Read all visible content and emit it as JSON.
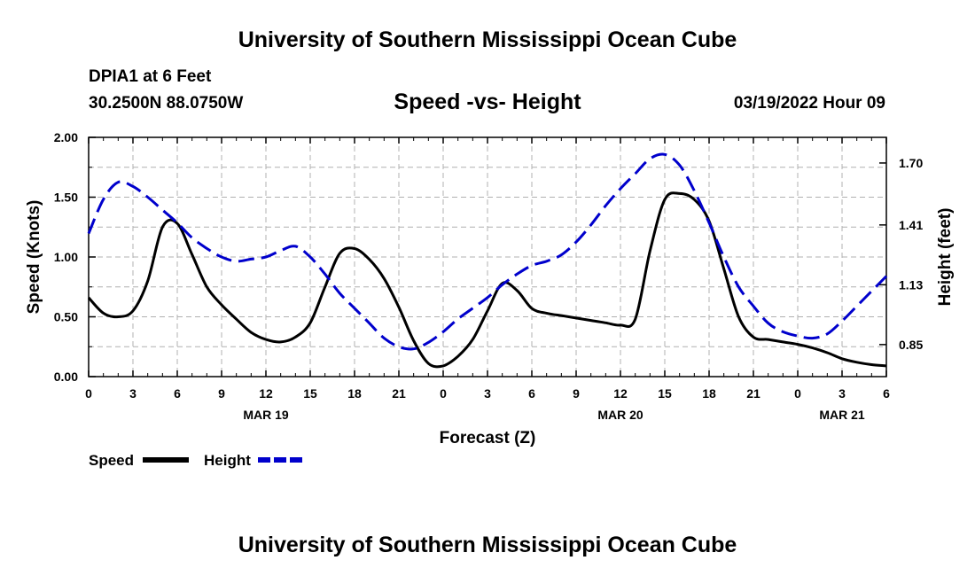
{
  "header": {
    "title_top": "University of Southern Mississippi Ocean Cube",
    "title_bottom": "University of Southern Mississippi Ocean Cube",
    "station": "DPIA1 at 6 Feet",
    "coords": "30.2500N  88.0750W",
    "datetime": "03/19/2022 Hour 09"
  },
  "colors": {
    "speed": "#000000",
    "height": "#0000cc",
    "grid": "#b0b0b0"
  },
  "chart_data": {
    "type": "line",
    "title": "Speed -vs- Height",
    "xlabel": "Forecast (Z)",
    "ylabel": "Speed (Knots)",
    "y2label": "Height (feet)",
    "ylim": [
      0,
      2
    ],
    "y2lim": [
      0.7,
      1.82
    ],
    "xlim": [
      0,
      54
    ],
    "x_ticks": [
      "0",
      "3",
      "6",
      "9",
      "12",
      "15",
      "18",
      "21",
      "0",
      "3",
      "6",
      "9",
      "12",
      "15",
      "18",
      "21",
      "0",
      "3",
      "6"
    ],
    "date_labels": [
      {
        "x": 12,
        "label": "MAR 19"
      },
      {
        "x": 36,
        "label": "MAR 20"
      },
      {
        "x": 51,
        "label": "MAR 21"
      }
    ],
    "y_ticks": [
      "0.00",
      "0.50",
      "1.00",
      "1.50",
      "2.00"
    ],
    "y2_ticks": [
      "0.85",
      "1.13",
      "1.41",
      "1.70"
    ],
    "legend": {
      "position": "bottom-left",
      "speed": "Speed",
      "height": "Height"
    },
    "series": [
      {
        "name": "Speed",
        "axis": "left",
        "x": [
          0,
          1,
          2,
          3,
          4,
          5,
          6,
          7,
          8,
          9,
          10,
          11,
          12,
          13,
          14,
          15,
          16,
          17,
          18,
          19,
          20,
          21,
          22,
          23,
          24,
          25,
          26,
          27,
          28,
          29,
          30,
          31,
          32,
          33,
          34,
          35,
          36,
          37,
          38,
          39,
          40,
          41,
          42,
          43,
          44,
          45,
          46,
          47,
          48,
          49,
          50,
          51,
          52,
          53,
          54
        ],
        "values": [
          0.66,
          0.53,
          0.5,
          0.55,
          0.8,
          1.25,
          1.28,
          1.02,
          0.75,
          0.6,
          0.48,
          0.37,
          0.31,
          0.29,
          0.33,
          0.45,
          0.75,
          1.03,
          1.07,
          0.98,
          0.82,
          0.58,
          0.3,
          0.11,
          0.09,
          0.17,
          0.31,
          0.55,
          0.78,
          0.72,
          0.57,
          0.53,
          0.51,
          0.49,
          0.47,
          0.45,
          0.43,
          0.48,
          1.05,
          1.48,
          1.53,
          1.48,
          1.3,
          0.9,
          0.5,
          0.33,
          0.31,
          0.29,
          0.27,
          0.24,
          0.2,
          0.15,
          0.12,
          0.1,
          0.09
        ]
      },
      {
        "name": "Height",
        "axis": "right",
        "x": [
          0,
          1,
          2,
          3,
          4,
          5,
          6,
          7,
          8,
          9,
          10,
          11,
          12,
          13,
          14,
          15,
          16,
          17,
          18,
          19,
          20,
          21,
          22,
          23,
          24,
          25,
          26,
          27,
          28,
          29,
          30,
          31,
          32,
          33,
          34,
          35,
          36,
          37,
          38,
          39,
          40,
          41,
          42,
          43,
          44,
          45,
          46,
          47,
          48,
          49,
          50,
          51,
          52,
          53,
          54
        ],
        "values": [
          1.37,
          1.53,
          1.61,
          1.59,
          1.54,
          1.48,
          1.42,
          1.35,
          1.3,
          1.26,
          1.24,
          1.25,
          1.26,
          1.29,
          1.31,
          1.26,
          1.18,
          1.09,
          1.02,
          0.95,
          0.88,
          0.84,
          0.83,
          0.86,
          0.91,
          0.97,
          1.02,
          1.07,
          1.13,
          1.18,
          1.22,
          1.24,
          1.27,
          1.33,
          1.41,
          1.5,
          1.58,
          1.65,
          1.72,
          1.74,
          1.69,
          1.57,
          1.42,
          1.26,
          1.12,
          1.03,
          0.95,
          0.91,
          0.89,
          0.88,
          0.9,
          0.96,
          1.03,
          1.1,
          1.17
        ]
      }
    ]
  }
}
